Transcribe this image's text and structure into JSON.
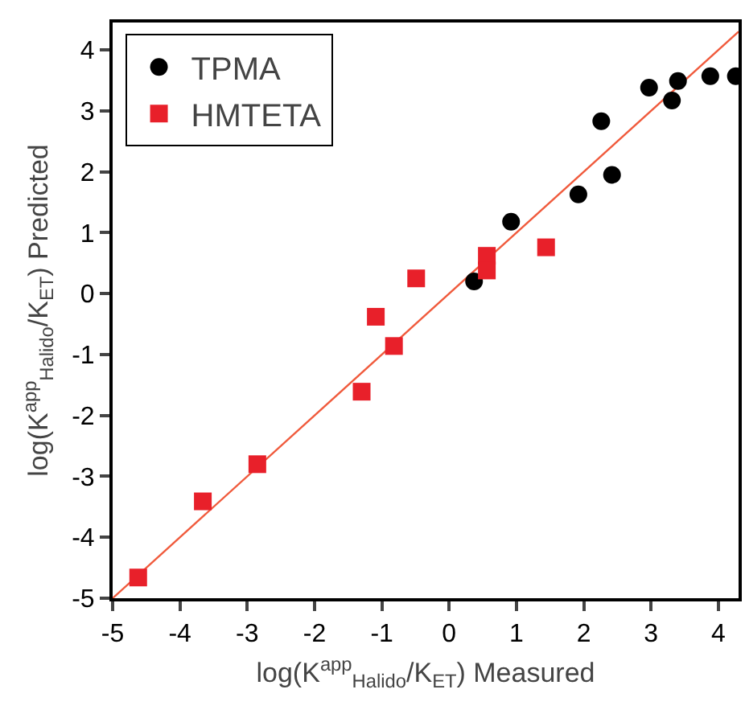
{
  "chart_data": {
    "type": "scatter",
    "xlabel": "log(K$^{app}$$_{Halido}$/K$_{ET}$) Measured",
    "ylabel": "log(K$^{app}$$_{Halido}$/K$_{ET}$) Predicted",
    "series": [
      {
        "name": "TPMA",
        "color": "#000000",
        "marker": "circle",
        "x": [
          0.37,
          0.92,
          1.92,
          2.26,
          2.42,
          2.97,
          3.31,
          3.4,
          3.88,
          4.26
        ],
        "values": [
          0.2,
          1.18,
          1.63,
          2.83,
          1.95,
          3.38,
          3.17,
          3.49,
          3.57,
          3.57
        ]
      },
      {
        "name": "HMTETA",
        "color": "#e8202a",
        "marker": "square",
        "x": [
          -0.49,
          0.56,
          0.56,
          1.44,
          -1.09,
          -0.82,
          -1.3,
          -2.85,
          -3.66,
          -4.62
        ],
        "values": [
          0.25,
          0.62,
          0.38,
          0.76,
          -0.38,
          -0.86,
          -1.61,
          -2.8,
          -3.41,
          -4.66
        ]
      },
      {
        "type": "line",
        "color": "#f05a3c",
        "marker": "none",
        "x": [
          -5,
          4.3
        ],
        "values": [
          -5,
          4.3
        ]
      }
    ],
    "xlim": [
      -5,
      4.3
    ],
    "ylim": [
      -5,
      4.45
    ],
    "xticks": [
      -5,
      -4,
      -3,
      -2,
      -1,
      0,
      1,
      2,
      3,
      4
    ],
    "yticks": [
      -5,
      -4,
      -3,
      -2,
      -1,
      0,
      1,
      2,
      3,
      4
    ],
    "grid": false,
    "legend": "top left"
  }
}
